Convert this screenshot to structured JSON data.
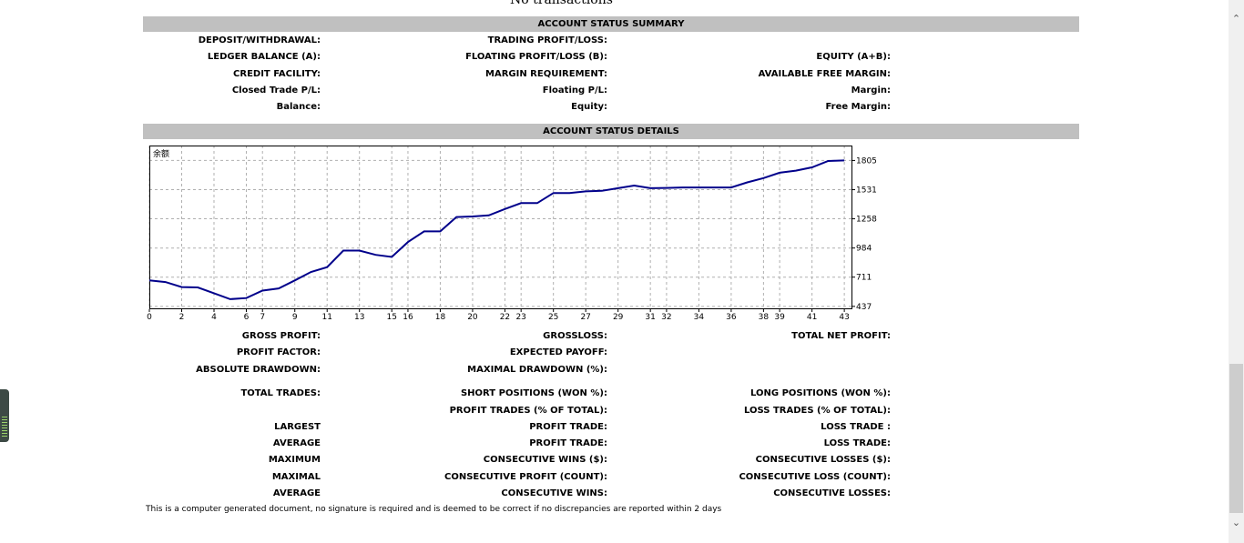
{
  "top_text": "No transactions",
  "summary": {
    "header": "ACCOUNT STATUS SUMMARY",
    "rows": [
      [
        "DEPOSIT/WITHDRAWAL:",
        "TRADING PROFIT/LOSS:",
        ""
      ],
      [
        "LEDGER BALANCE (A):",
        "FLOATING PROFIT/LOSS (B):",
        "EQUITY (A+B):"
      ],
      [
        "CREDIT FACILITY:",
        "MARGIN REQUIREMENT:",
        "AVAILABLE FREE MARGIN:"
      ],
      [
        "Closed Trade P/L:",
        "Floating P/L:",
        "Margin:"
      ],
      [
        "Balance:",
        "Equity:",
        "Free Margin:"
      ]
    ]
  },
  "details": {
    "header": "ACCOUNT STATUS DETAILS",
    "rows": [
      [
        "GROSS PROFIT:",
        "GROSSLOSS:",
        "TOTAL NET PROFIT:"
      ],
      [
        "PROFIT FACTOR:",
        "EXPECTED PAYOFF:",
        ""
      ],
      [
        "ABSOLUTE DRAWDOWN:",
        "MAXIMAL DRAWDOWN (%):",
        ""
      ],
      [
        "TOTAL TRADES:",
        "SHORT POSITIONS (WON %):",
        "LONG POSITIONS (WON %):"
      ],
      [
        "",
        "PROFIT TRADES (% OF TOTAL):",
        "LOSS TRADES (% OF TOTAL):"
      ],
      [
        "LARGEST",
        "PROFIT TRADE:",
        "LOSS TRADE :"
      ],
      [
        "AVERAGE",
        "PROFIT TRADE:",
        "LOSS TRADE:"
      ],
      [
        "MAXIMUM",
        "CONSECUTIVE WINS ($):",
        "CONSECUTIVE LOSSES ($):"
      ],
      [
        "MAXIMAL",
        "CONSECUTIVE PROFIT (COUNT):",
        "CONSECUTIVE LOSS (COUNT):"
      ],
      [
        "AVERAGE",
        "CONSECUTIVE WINS:",
        "CONSECUTIVE LOSSES:"
      ]
    ]
  },
  "footer": "This is a computer generated document, no signature is required and is deemed to be correct if no discrepancies are reported within 2 days",
  "chart_data": {
    "type": "line",
    "title": "余额",
    "x_ticks": [
      0,
      2,
      4,
      6,
      7,
      9,
      11,
      13,
      15,
      16,
      18,
      20,
      22,
      23,
      25,
      27,
      29,
      31,
      32,
      34,
      36,
      38,
      39,
      41,
      43
    ],
    "y_ticks": [
      437,
      711,
      984,
      1258,
      1531,
      1805
    ],
    "xlim": [
      0,
      43.5
    ],
    "ylim": [
      410,
      1945
    ],
    "grid": true,
    "line_color": "#00008b",
    "series": [
      {
        "x": [
          0,
          1,
          2,
          3,
          4,
          5,
          6,
          7,
          8,
          9,
          10,
          11,
          12,
          13,
          14,
          15,
          16,
          17,
          18,
          19,
          20,
          21,
          22,
          23,
          24,
          25,
          26,
          27,
          28,
          29,
          30,
          31,
          32,
          33,
          34,
          35,
          36,
          37,
          38,
          39,
          40,
          41,
          42,
          43
        ],
        "y": [
          680,
          665,
          618,
          615,
          560,
          505,
          515,
          585,
          605,
          680,
          760,
          805,
          960,
          960,
          920,
          900,
          1040,
          1140,
          1140,
          1275,
          1280,
          1290,
          1350,
          1405,
          1405,
          1500,
          1500,
          1515,
          1520,
          1545,
          1570,
          1545,
          1548,
          1552,
          1552,
          1552,
          1552,
          1600,
          1640,
          1690,
          1710,
          1740,
          1800,
          1805
        ]
      }
    ]
  }
}
